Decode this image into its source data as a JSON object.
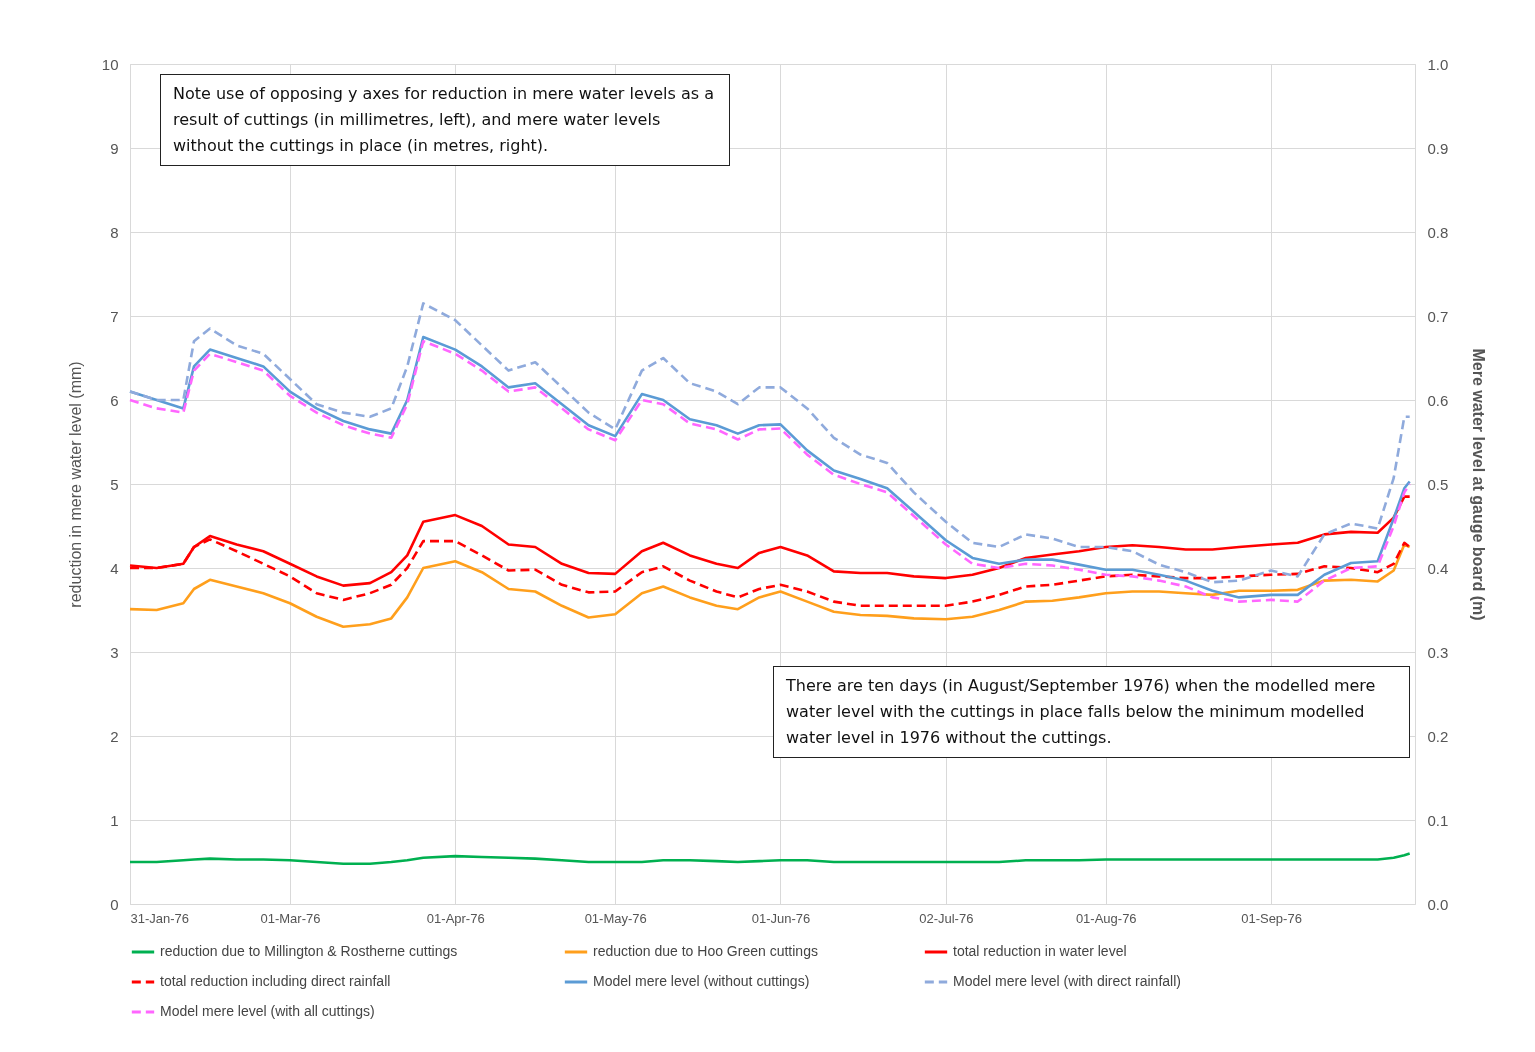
{
  "chart_data": {
    "type": "line",
    "xlabel": null,
    "ylabel": "reduction in mere water level (mm)",
    "y2label": "Mere water level at gauge board (m)",
    "annotations": [
      "Note use of opposing y axes for reduction in mere water levels as a result of cuttings (in millimetres, left), and mere water levels without the cuttings in place (in metres, right).",
      "There are ten days (in August/September 1976) when the modelled mere water level with the cuttings in place falls below the minimum modelled water level in 1976 without the cuttings."
    ],
    "x": [
      "1976-01-31",
      "1976-02-05",
      "1976-02-10",
      "1976-02-12",
      "1976-02-15",
      "1976-02-20",
      "1976-02-25",
      "1976-03-01",
      "1976-03-06",
      "1976-03-11",
      "1976-03-16",
      "1976-03-20",
      "1976-03-23",
      "1976-03-26",
      "1976-04-01",
      "1976-04-06",
      "1976-04-11",
      "1976-04-16",
      "1976-04-21",
      "1976-04-26",
      "1976-05-01",
      "1976-05-06",
      "1976-05-10",
      "1976-05-15",
      "1976-05-20",
      "1976-05-24",
      "1976-05-28",
      "1976-06-01",
      "1976-06-06",
      "1976-06-11",
      "1976-06-16",
      "1976-06-21",
      "1976-06-26",
      "1976-07-02",
      "1976-07-07",
      "1976-07-12",
      "1976-07-17",
      "1976-07-22",
      "1976-07-27",
      "1976-08-01",
      "1976-08-06",
      "1976-08-11",
      "1976-08-16",
      "1976-08-21",
      "1976-08-26",
      "1976-09-01",
      "1976-09-06",
      "1976-09-11",
      "1976-09-16",
      "1976-09-21",
      "1976-09-24",
      "1976-09-26",
      "1976-09-27"
    ],
    "series": [
      {
        "name": "reduction due to Millington & Rostherne cuttings",
        "color": "#00b050",
        "line_style": "solid",
        "values": [
          0.5,
          0.5,
          0.52,
          0.53,
          0.54,
          0.53,
          0.53,
          0.52,
          0.5,
          0.48,
          0.48,
          0.5,
          0.52,
          0.55,
          0.57,
          0.56,
          0.55,
          0.54,
          0.52,
          0.5,
          0.5,
          0.5,
          0.52,
          0.52,
          0.51,
          0.5,
          0.51,
          0.52,
          0.52,
          0.5,
          0.5,
          0.5,
          0.5,
          0.5,
          0.5,
          0.5,
          0.52,
          0.52,
          0.52,
          0.53,
          0.53,
          0.53,
          0.53,
          0.53,
          0.53,
          0.53,
          0.53,
          0.53,
          0.53,
          0.53,
          0.55,
          0.58,
          0.6
        ]
      },
      {
        "name": "reduction due to Hoo Green cuttings",
        "color": "#ff9f1c",
        "line_style": "solid",
        "values": [
          3.51,
          3.5,
          3.58,
          3.75,
          3.86,
          3.78,
          3.7,
          3.58,
          3.42,
          3.3,
          3.33,
          3.4,
          3.65,
          4.0,
          4.08,
          3.95,
          3.75,
          3.72,
          3.55,
          3.41,
          3.45,
          3.7,
          3.78,
          3.65,
          3.55,
          3.51,
          3.65,
          3.72,
          3.6,
          3.48,
          3.44,
          3.43,
          3.4,
          3.39,
          3.42,
          3.5,
          3.6,
          3.61,
          3.65,
          3.7,
          3.72,
          3.72,
          3.7,
          3.68,
          3.73,
          3.73,
          3.74,
          3.85,
          3.86,
          3.84,
          3.97,
          4.28,
          4.25
        ]
      },
      {
        "name": "total reduction in water level",
        "color": "#ff0000",
        "line_style": "solid",
        "values": [
          4.03,
          4.0,
          4.05,
          4.25,
          4.38,
          4.28,
          4.2,
          4.05,
          3.9,
          3.79,
          3.82,
          3.95,
          4.15,
          4.55,
          4.63,
          4.5,
          4.28,
          4.25,
          4.05,
          3.94,
          3.93,
          4.2,
          4.3,
          4.15,
          4.05,
          4.0,
          4.18,
          4.25,
          4.15,
          3.96,
          3.94,
          3.94,
          3.9,
          3.88,
          3.92,
          4.0,
          4.12,
          4.16,
          4.2,
          4.25,
          4.27,
          4.25,
          4.22,
          4.22,
          4.25,
          4.28,
          4.3,
          4.4,
          4.43,
          4.42,
          4.6,
          4.85,
          4.85
        ]
      },
      {
        "name": "total reduction including direct rainfall",
        "color": "#ff0000",
        "line_style": "dashed",
        "values": [
          4.0,
          4.0,
          4.05,
          4.25,
          4.34,
          4.2,
          4.05,
          3.9,
          3.7,
          3.62,
          3.7,
          3.8,
          4.0,
          4.32,
          4.32,
          4.15,
          3.97,
          3.98,
          3.8,
          3.71,
          3.72,
          3.95,
          4.02,
          3.85,
          3.72,
          3.65,
          3.75,
          3.8,
          3.72,
          3.6,
          3.55,
          3.55,
          3.55,
          3.55,
          3.6,
          3.68,
          3.78,
          3.8,
          3.85,
          3.9,
          3.92,
          3.9,
          3.88,
          3.88,
          3.9,
          3.92,
          3.93,
          4.02,
          4.0,
          3.95,
          4.05,
          4.3,
          4.25
        ]
      },
      {
        "name": "Model mere level (without cuttings)",
        "color": "#5b9bd5",
        "line_style": "solid",
        "axis": "y2",
        "values": [
          0.61,
          0.6,
          0.59,
          0.64,
          0.66,
          0.65,
          0.64,
          0.61,
          0.59,
          0.575,
          0.565,
          0.56,
          0.6,
          0.675,
          0.66,
          0.64,
          0.615,
          0.62,
          0.595,
          0.57,
          0.557,
          0.607,
          0.6,
          0.577,
          0.57,
          0.56,
          0.57,
          0.571,
          0.54,
          0.516,
          0.506,
          0.495,
          0.467,
          0.433,
          0.412,
          0.405,
          0.41,
          0.41,
          0.404,
          0.398,
          0.398,
          0.392,
          0.385,
          0.373,
          0.365,
          0.368,
          0.368,
          0.392,
          0.406,
          0.408,
          0.459,
          0.495,
          0.503
        ]
      },
      {
        "name": "Model mere level (with direct rainfall)",
        "color": "#8faadc",
        "line_style": "dashed",
        "axis": "y2",
        "values": [
          0.61,
          0.6,
          0.6,
          0.67,
          0.685,
          0.665,
          0.655,
          0.625,
          0.595,
          0.585,
          0.58,
          0.59,
          0.64,
          0.715,
          0.695,
          0.665,
          0.635,
          0.645,
          0.615,
          0.585,
          0.565,
          0.635,
          0.65,
          0.62,
          0.61,
          0.595,
          0.615,
          0.615,
          0.59,
          0.555,
          0.535,
          0.525,
          0.49,
          0.455,
          0.43,
          0.425,
          0.44,
          0.435,
          0.425,
          0.425,
          0.42,
          0.404,
          0.395,
          0.383,
          0.385,
          0.397,
          0.39,
          0.44,
          0.453,
          0.447,
          0.507,
          0.58,
          0.58
        ]
      },
      {
        "name": "Model mere level (with all cuttings)",
        "color": "#ff66ff",
        "line_style": "dashed",
        "axis": "y2",
        "values": [
          0.6,
          0.59,
          0.585,
          0.635,
          0.655,
          0.645,
          0.635,
          0.605,
          0.585,
          0.57,
          0.56,
          0.555,
          0.595,
          0.67,
          0.655,
          0.635,
          0.61,
          0.615,
          0.59,
          0.565,
          0.552,
          0.6,
          0.595,
          0.572,
          0.565,
          0.553,
          0.565,
          0.566,
          0.535,
          0.511,
          0.5,
          0.49,
          0.462,
          0.428,
          0.405,
          0.4,
          0.405,
          0.403,
          0.398,
          0.392,
          0.39,
          0.385,
          0.378,
          0.365,
          0.36,
          0.362,
          0.36,
          0.385,
          0.4,
          0.402,
          0.45,
          0.49,
          0.5
        ]
      }
    ],
    "xlim": [
      "1976-01-31",
      "1976-09-28"
    ],
    "xticks": [
      {
        "value": "1976-01-31",
        "label": "31-Jan-76"
      },
      {
        "value": "1976-03-01",
        "label": "01-Mar-76"
      },
      {
        "value": "1976-04-01",
        "label": "01-Apr-76"
      },
      {
        "value": "1976-05-01",
        "label": "01-May-76"
      },
      {
        "value": "1976-06-01",
        "label": "01-Jun-76"
      },
      {
        "value": "1976-07-02",
        "label": "02-Jul-76"
      },
      {
        "value": "1976-08-01",
        "label": "01-Aug-76"
      },
      {
        "value": "1976-09-01",
        "label": "01-Sep-76"
      }
    ],
    "ylim": [
      0,
      10
    ],
    "yticks": [
      0,
      1,
      2,
      3,
      4,
      5,
      6,
      7,
      8,
      9,
      10
    ],
    "y2lim": [
      0,
      1
    ],
    "y2ticks": [
      {
        "value": 0,
        "label": "0.0"
      },
      0.1,
      0.2,
      0.3,
      0.4,
      0.5,
      0.6,
      0.7,
      0.8,
      0.9,
      {
        "value": 1,
        "label": "1.0"
      }
    ],
    "grid": true,
    "legend": "bottom"
  }
}
